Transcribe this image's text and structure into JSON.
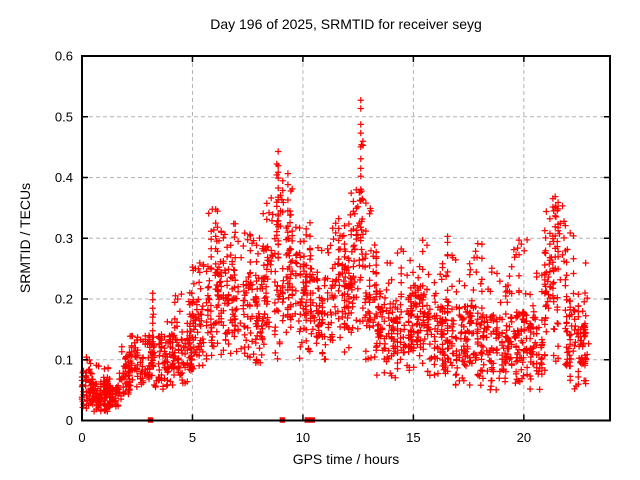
{
  "page": {
    "background": "#ffffff"
  },
  "chart_data": {
    "type": "scatter",
    "title": "Day 196 of 2025, SRMTID for receiver seyg",
    "xlabel": "GPS time / hours",
    "ylabel": "SRMTID / TECUs",
    "xlim": [
      0,
      23.9
    ],
    "ylim": [
      0,
      0.6
    ],
    "xticks": [
      {
        "v": 0,
        "label": "0"
      },
      {
        "v": 5,
        "label": "5"
      },
      {
        "v": 10,
        "label": "10"
      },
      {
        "v": 15,
        "label": "15"
      },
      {
        "v": 20,
        "label": "20"
      }
    ],
    "yticks": [
      {
        "v": 0,
        "label": "0"
      },
      {
        "v": 0.1,
        "label": "0.1"
      },
      {
        "v": 0.2,
        "label": "0.2"
      },
      {
        "v": 0.3,
        "label": "0.3"
      },
      {
        "v": 0.4,
        "label": "0.4"
      },
      {
        "v": 0.5,
        "label": "0.5"
      },
      {
        "v": 0.6,
        "label": "0.6"
      }
    ],
    "grid": true,
    "legend": "none",
    "marker": {
      "shape": "plus",
      "color": "#ff0000",
      "size": 6.4,
      "stroke_width": 1.25
    },
    "axis_color": "#000000",
    "grid_color": "#b3b3b3",
    "zero_value_markers": {
      "shape": "square",
      "color": "#ff0000",
      "size": 5.5,
      "hours": [
        3.1,
        9.07,
        10.2,
        10.42
      ]
    },
    "seed": 42,
    "epoch_step_hours": 0.0333,
    "clusters_note": "each cluster = [t_start_h, t_end_h, dense_y_lo, dense_y_hi, y_min, y_max, n_points] in TECUs",
    "clusters": [
      [
        0.0,
        0.35,
        0.03,
        0.09,
        0.02,
        0.11,
        40
      ],
      [
        0.35,
        1.3,
        0.025,
        0.065,
        0.015,
        0.1,
        150
      ],
      [
        1.3,
        1.8,
        0.025,
        0.055,
        0.02,
        0.08,
        45
      ],
      [
        1.8,
        2.15,
        0.05,
        0.11,
        0.04,
        0.135,
        40
      ],
      [
        2.15,
        2.7,
        0.06,
        0.12,
        0.05,
        0.14,
        55
      ],
      [
        2.7,
        3.3,
        0.07,
        0.14,
        0.05,
        0.21,
        60
      ],
      [
        3.3,
        4.2,
        0.07,
        0.14,
        0.05,
        0.18,
        85
      ],
      [
        4.2,
        5.0,
        0.08,
        0.15,
        0.06,
        0.21,
        80
      ],
      [
        5.0,
        5.6,
        0.11,
        0.2,
        0.08,
        0.26,
        60
      ],
      [
        5.6,
        6.4,
        0.14,
        0.26,
        0.1,
        0.35,
        80
      ],
      [
        6.4,
        7.2,
        0.14,
        0.25,
        0.11,
        0.33,
        80
      ],
      [
        7.2,
        8.2,
        0.12,
        0.24,
        0.09,
        0.31,
        95
      ],
      [
        8.2,
        8.75,
        0.15,
        0.3,
        0.12,
        0.38,
        55
      ],
      [
        8.75,
        9.15,
        0.18,
        0.35,
        0.1,
        0.44,
        50
      ],
      [
        9.15,
        9.65,
        0.17,
        0.32,
        0.12,
        0.41,
        50
      ],
      [
        9.65,
        10.15,
        0.15,
        0.28,
        0.1,
        0.33,
        50
      ],
      [
        10.15,
        10.65,
        0.12,
        0.26,
        0.09,
        0.33,
        50
      ],
      [
        10.65,
        11.35,
        0.13,
        0.24,
        0.1,
        0.29,
        65
      ],
      [
        11.35,
        12.15,
        0.15,
        0.27,
        0.11,
        0.33,
        80
      ],
      [
        12.15,
        12.55,
        0.18,
        0.33,
        0.13,
        0.4,
        45
      ],
      [
        12.55,
        12.75,
        0.22,
        0.38,
        0.15,
        0.46,
        30
      ],
      [
        12.75,
        13.35,
        0.14,
        0.28,
        0.1,
        0.37,
        60
      ],
      [
        13.35,
        14.25,
        0.1,
        0.2,
        0.07,
        0.26,
        85
      ],
      [
        14.25,
        15.05,
        0.11,
        0.21,
        0.08,
        0.28,
        80
      ],
      [
        15.05,
        15.65,
        0.12,
        0.22,
        0.09,
        0.3,
        60
      ],
      [
        15.65,
        16.45,
        0.1,
        0.19,
        0.07,
        0.26,
        80
      ],
      [
        16.45,
        17.05,
        0.09,
        0.2,
        0.05,
        0.3,
        60
      ],
      [
        17.05,
        17.85,
        0.09,
        0.19,
        0.05,
        0.28,
        80
      ],
      [
        17.85,
        18.65,
        0.08,
        0.18,
        0.05,
        0.3,
        80
      ],
      [
        18.65,
        19.45,
        0.08,
        0.17,
        0.05,
        0.25,
        75
      ],
      [
        19.45,
        20.25,
        0.09,
        0.18,
        0.06,
        0.3,
        75
      ],
      [
        20.25,
        20.95,
        0.08,
        0.17,
        0.05,
        0.25,
        65
      ],
      [
        20.95,
        21.9,
        0.15,
        0.33,
        0.08,
        0.37,
        90
      ],
      [
        21.9,
        22.5,
        0.08,
        0.2,
        0.05,
        0.31,
        60
      ],
      [
        22.5,
        22.95,
        0.09,
        0.16,
        0.05,
        0.26,
        50
      ]
    ],
    "spikes_note": "vertical streaks = [t_h, y_lo, y_hi, n_points]",
    "spikes": [
      [
        12.62,
        0.36,
        0.53,
        10
      ],
      [
        8.88,
        0.3,
        0.44,
        8
      ],
      [
        9.32,
        0.28,
        0.41,
        7
      ],
      [
        6.05,
        0.22,
        0.345,
        7
      ],
      [
        5.85,
        0.25,
        0.31,
        5
      ],
      [
        21.42,
        0.25,
        0.365,
        8
      ],
      [
        21.18,
        0.22,
        0.33,
        6
      ],
      [
        16.55,
        0.15,
        0.3,
        6
      ],
      [
        10.32,
        0.24,
        0.33,
        5
      ],
      [
        14.45,
        0.18,
        0.28,
        5
      ],
      [
        19.78,
        0.18,
        0.3,
        5
      ],
      [
        22.25,
        0.18,
        0.3,
        5
      ],
      [
        3.2,
        0.13,
        0.205,
        5
      ],
      [
        18.1,
        0.18,
        0.29,
        5
      ],
      [
        11.62,
        0.24,
        0.335,
        6
      ],
      [
        15.42,
        0.2,
        0.3,
        5
      ],
      [
        7.62,
        0.22,
        0.3,
        5
      ],
      [
        4.88,
        0.13,
        0.21,
        5
      ]
    ]
  }
}
